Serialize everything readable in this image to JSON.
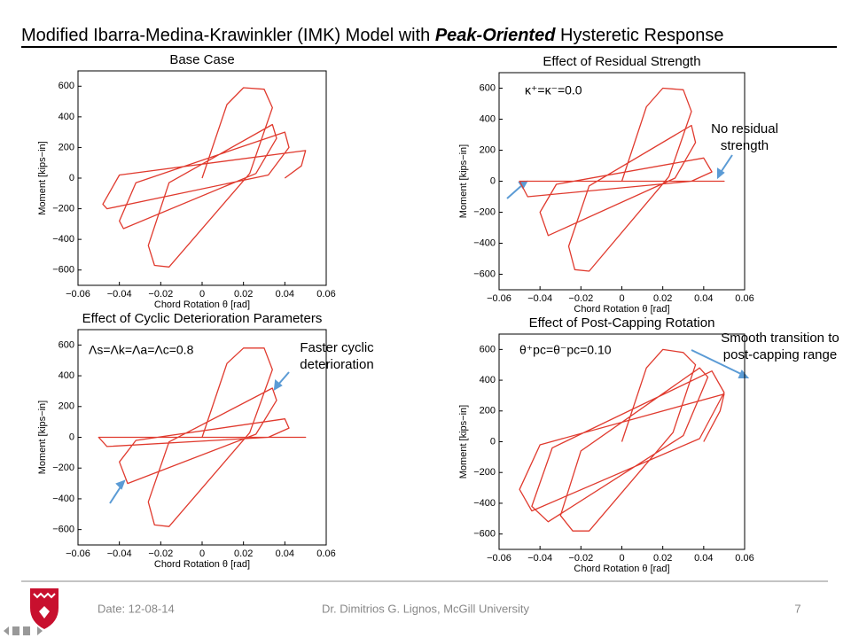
{
  "slide": {
    "title_parts": [
      "Modified Ibarra-Medina-Krawinkler (IMK) Model with",
      "Peak-Oriented",
      "Hysteretic Response"
    ],
    "footer_date": "Date: 12-08-14",
    "footer_author": "Dr. Dimitrios G. Lignos, McGill University",
    "page_number": "7"
  },
  "chart_data": [
    {
      "type": "line",
      "title": "Base Case",
      "xlabel": "Chord Rotation θ [rad]",
      "ylabel": "Moment [kips−in]",
      "xlim": [
        -0.06,
        0.06
      ],
      "ylim": [
        -700,
        700
      ],
      "xticks": [
        {
          "value": -0.06,
          "label": "−0.06"
        },
        {
          "value": -0.04,
          "label": "−0.04"
        },
        {
          "value": -0.02,
          "label": "−0.02"
        },
        0,
        0.02,
        0.04,
        0.06
      ],
      "yticks": [
        {
          "value": -600,
          "label": "−600"
        },
        {
          "value": -400,
          "label": "−400"
        },
        {
          "value": -200,
          "label": "−200"
        },
        0,
        200,
        400,
        600
      ],
      "annotations": [],
      "series": [
        {
          "color": "#e03a2e",
          "x": [
            0,
            0.012,
            0.02,
            0.03,
            0.034,
            0.023,
            -0.016,
            -0.023,
            -0.026,
            -0.016,
            0.034,
            0.036,
            0.026,
            -0.038,
            -0.04,
            -0.032,
            0.04,
            0.042,
            0.032,
            -0.046,
            -0.048,
            -0.04,
            0.05,
            0.048,
            0.04
          ],
          "values": [
            0,
            480,
            590,
            580,
            460,
            30,
            -580,
            -570,
            -440,
            -30,
            350,
            260,
            30,
            -330,
            -280,
            -30,
            300,
            200,
            20,
            -200,
            -170,
            20,
            180,
            80,
            0
          ]
        }
      ]
    },
    {
      "type": "line",
      "title": "Effect of Residual Strength",
      "xlabel": "Chord Rotation θ [rad]",
      "ylabel": "Moment [kips−in]",
      "xlim": [
        -0.06,
        0.06
      ],
      "ylim": [
        -700,
        700
      ],
      "xticks": [
        {
          "value": -0.06,
          "label": "−0.06"
        },
        {
          "value": -0.04,
          "label": "−0.04"
        },
        {
          "value": -0.02,
          "label": "−0.02"
        },
        0,
        0.02,
        0.04,
        0.06
      ],
      "yticks": [
        {
          "value": -600,
          "label": "−600"
        },
        {
          "value": -400,
          "label": "−400"
        },
        {
          "value": -200,
          "label": "−200"
        },
        0,
        200,
        400,
        600
      ],
      "annotations": [
        [
          "κ⁺=κ⁻=0.0"
        ],
        [
          "No residual",
          "strength"
        ]
      ],
      "series": [
        {
          "color": "#e03a2e",
          "x": [
            0,
            0.012,
            0.02,
            0.03,
            0.034,
            0.023,
            -0.016,
            -0.023,
            -0.026,
            -0.016,
            0.034,
            0.036,
            0.026,
            -0.036,
            -0.04,
            -0.032,
            0.04,
            0.044,
            0.034,
            -0.046,
            -0.05,
            -0.04,
            0.05,
            0.046,
            0.04
          ],
          "values": [
            0,
            480,
            600,
            590,
            450,
            30,
            -580,
            -570,
            -420,
            -30,
            360,
            250,
            20,
            -350,
            -200,
            -20,
            150,
            60,
            0,
            -100,
            0,
            0,
            0,
            0,
            0
          ]
        }
      ]
    },
    {
      "type": "line",
      "title": "Effect of Cyclic Deterioration Parameters",
      "xlabel": "Chord Rotation θ [rad]",
      "ylabel": "Moment [kips−in]",
      "xlim": [
        -0.06,
        0.06
      ],
      "ylim": [
        -700,
        700
      ],
      "xticks": [
        {
          "value": -0.06,
          "label": "−0.06"
        },
        {
          "value": -0.04,
          "label": "−0.04"
        },
        {
          "value": -0.02,
          "label": "−0.02"
        },
        0,
        0.02,
        0.04,
        0.06
      ],
      "yticks": [
        {
          "value": -600,
          "label": "−600"
        },
        {
          "value": -400,
          "label": "−400"
        },
        {
          "value": -200,
          "label": "−200"
        },
        0,
        200,
        400,
        600
      ],
      "annotations": [
        [
          "Λs=Λk=Λa=Λc=0.8"
        ],
        [
          "Faster cyclic",
          "deterioration"
        ]
      ],
      "series": [
        {
          "color": "#e03a2e",
          "x": [
            0,
            0.012,
            0.02,
            0.03,
            0.034,
            0.023,
            -0.016,
            -0.023,
            -0.026,
            -0.016,
            0.034,
            0.036,
            0.026,
            -0.036,
            -0.04,
            -0.032,
            0.04,
            0.042,
            0.032,
            -0.046,
            -0.05,
            -0.04,
            0.05,
            0.048,
            0.04
          ],
          "values": [
            0,
            480,
            580,
            580,
            440,
            30,
            -580,
            -570,
            -420,
            -30,
            320,
            240,
            20,
            -300,
            -160,
            -20,
            120,
            60,
            0,
            -60,
            0,
            0,
            0,
            0,
            0
          ]
        }
      ]
    },
    {
      "type": "line",
      "title": "Effect of Post-Capping Rotation",
      "xlabel": "Chord Rotation θ [rad]",
      "ylabel": "Moment [kips−in]",
      "xlim": [
        -0.06,
        0.06
      ],
      "ylim": [
        -700,
        700
      ],
      "xticks": [
        {
          "value": -0.06,
          "label": "−0.06"
        },
        {
          "value": -0.04,
          "label": "−0.04"
        },
        {
          "value": -0.02,
          "label": "−0.02"
        },
        0,
        0.02,
        0.04,
        0.06
      ],
      "yticks": [
        {
          "value": -600,
          "label": "−600"
        },
        {
          "value": -400,
          "label": "−400"
        },
        {
          "value": -200,
          "label": "−200"
        },
        0,
        200,
        400,
        600
      ],
      "annotations": [
        [
          "θ⁺pc=θ⁻pc=0.10"
        ],
        [
          "Smooth transition to",
          "post-capping range"
        ]
      ],
      "series": [
        {
          "color": "#e03a2e",
          "x": [
            0,
            0.012,
            0.02,
            0.03,
            0.036,
            0.025,
            -0.016,
            -0.024,
            -0.03,
            -0.02,
            0.038,
            0.042,
            0.03,
            -0.036,
            -0.044,
            -0.034,
            0.044,
            0.05,
            0.038,
            -0.044,
            -0.05,
            -0.04,
            0.05,
            0.048,
            0.04
          ],
          "values": [
            0,
            480,
            600,
            580,
            500,
            60,
            -580,
            -580,
            -480,
            -60,
            480,
            420,
            40,
            -520,
            -420,
            -40,
            460,
            320,
            20,
            -450,
            -310,
            -20,
            310,
            200,
            0
          ]
        }
      ]
    }
  ]
}
